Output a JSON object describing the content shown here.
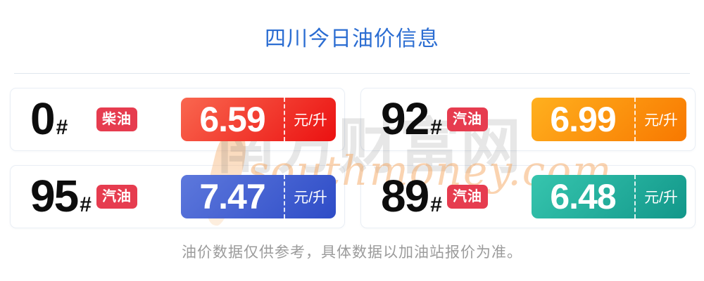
{
  "title": "四川今日油价信息",
  "cards": [
    {
      "grade": "0",
      "hash": "#",
      "fuel": "柴油",
      "price": "6.59",
      "unit": "元/升",
      "gradient_from": "#f9674f",
      "gradient_to": "#eb1111"
    },
    {
      "grade": "92",
      "hash": "#",
      "fuel": "汽油",
      "price": "6.99",
      "unit": "元/升",
      "gradient_from": "#ffb01e",
      "gradient_to": "#f87800"
    },
    {
      "grade": "95",
      "hash": "#",
      "fuel": "汽油",
      "price": "7.47",
      "unit": "元/升",
      "gradient_from": "#5d78dc",
      "gradient_to": "#2e4cc7"
    },
    {
      "grade": "89",
      "hash": "#",
      "fuel": "汽油",
      "price": "6.48",
      "unit": "元/升",
      "gradient_from": "#36c5ae",
      "gradient_to": "#12978a"
    }
  ],
  "watermark": {
    "cn": "南方财富网",
    "en": "southmoney.com"
  },
  "footer_note": "油价数据仅供参考，具体数据以加油站报价为准。",
  "colors": {
    "title_text": "#2b6dd2",
    "badge_bg": "#e63c4f",
    "divider": "#dfe6ee",
    "footer_text": "#9b9b9b"
  }
}
